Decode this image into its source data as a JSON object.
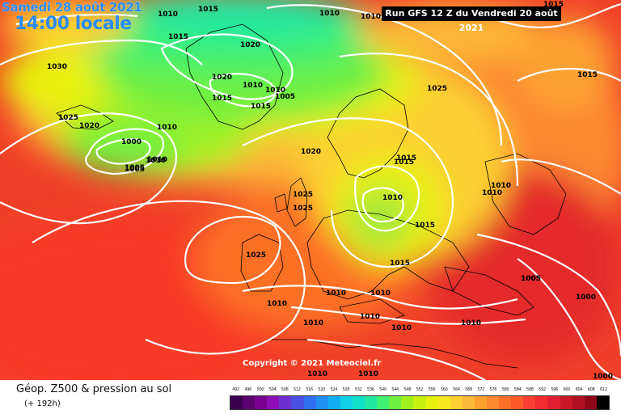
{
  "header": {
    "date_label": "Samedi 28 août 2021",
    "time_label": "14:00 locale",
    "run_label": "Run GFS 12 Z du Vendredi 20 août 2021"
  },
  "copyright": "Copyright © 2021 Meteociel.fr",
  "legend": {
    "title": "Géop. Z500 & pression au sol",
    "subtitle": "(+ 192h)",
    "scale_values": [
      "492",
      "496",
      "500",
      "504",
      "508",
      "512",
      "516",
      "520",
      "524",
      "528",
      "532",
      "536",
      "540",
      "544",
      "548",
      "552",
      "556",
      "560",
      "564",
      "568",
      "572",
      "576",
      "580",
      "584",
      "588",
      "592",
      "596",
      "600",
      "604",
      "608",
      "612"
    ],
    "scale_colors": [
      "#3a0050",
      "#5b006e",
      "#7a0090",
      "#8f10b8",
      "#7030d0",
      "#4a50e0",
      "#2f70f0",
      "#1f90f0",
      "#10b0f0",
      "#10d0e8",
      "#10e0c8",
      "#20e8a0",
      "#40f070",
      "#70f040",
      "#a0f020",
      "#c8f010",
      "#e8f010",
      "#f8e820",
      "#fcd030",
      "#fcb838",
      "#fca030",
      "#fc8830",
      "#fc7028",
      "#fc5828",
      "#f84030",
      "#f02c30",
      "#e02030",
      "#c81828",
      "#b01020",
      "#900818",
      "#000000"
    ]
  },
  "map": {
    "isobar_labels": [
      "1010",
      "1015",
      "1010",
      "1010",
      "1015",
      "1015",
      "1015",
      "1010",
      "1030",
      "1015",
      "1020",
      "1020",
      "1010",
      "1010",
      "1005",
      "1025",
      "1020",
      "1015",
      "1010",
      "1005",
      "1025",
      "1000",
      "1005",
      "1010",
      "1020",
      "1015",
      "1010",
      "1005",
      "1025",
      "1025",
      "1015",
      "1010",
      "1025",
      "1015",
      "1010",
      "1010",
      "1015",
      "1005",
      "1000",
      "1010",
      "1010",
      "1010",
      "1010",
      "1010",
      "1010",
      "1010",
      "1010",
      "1000"
    ]
  }
}
